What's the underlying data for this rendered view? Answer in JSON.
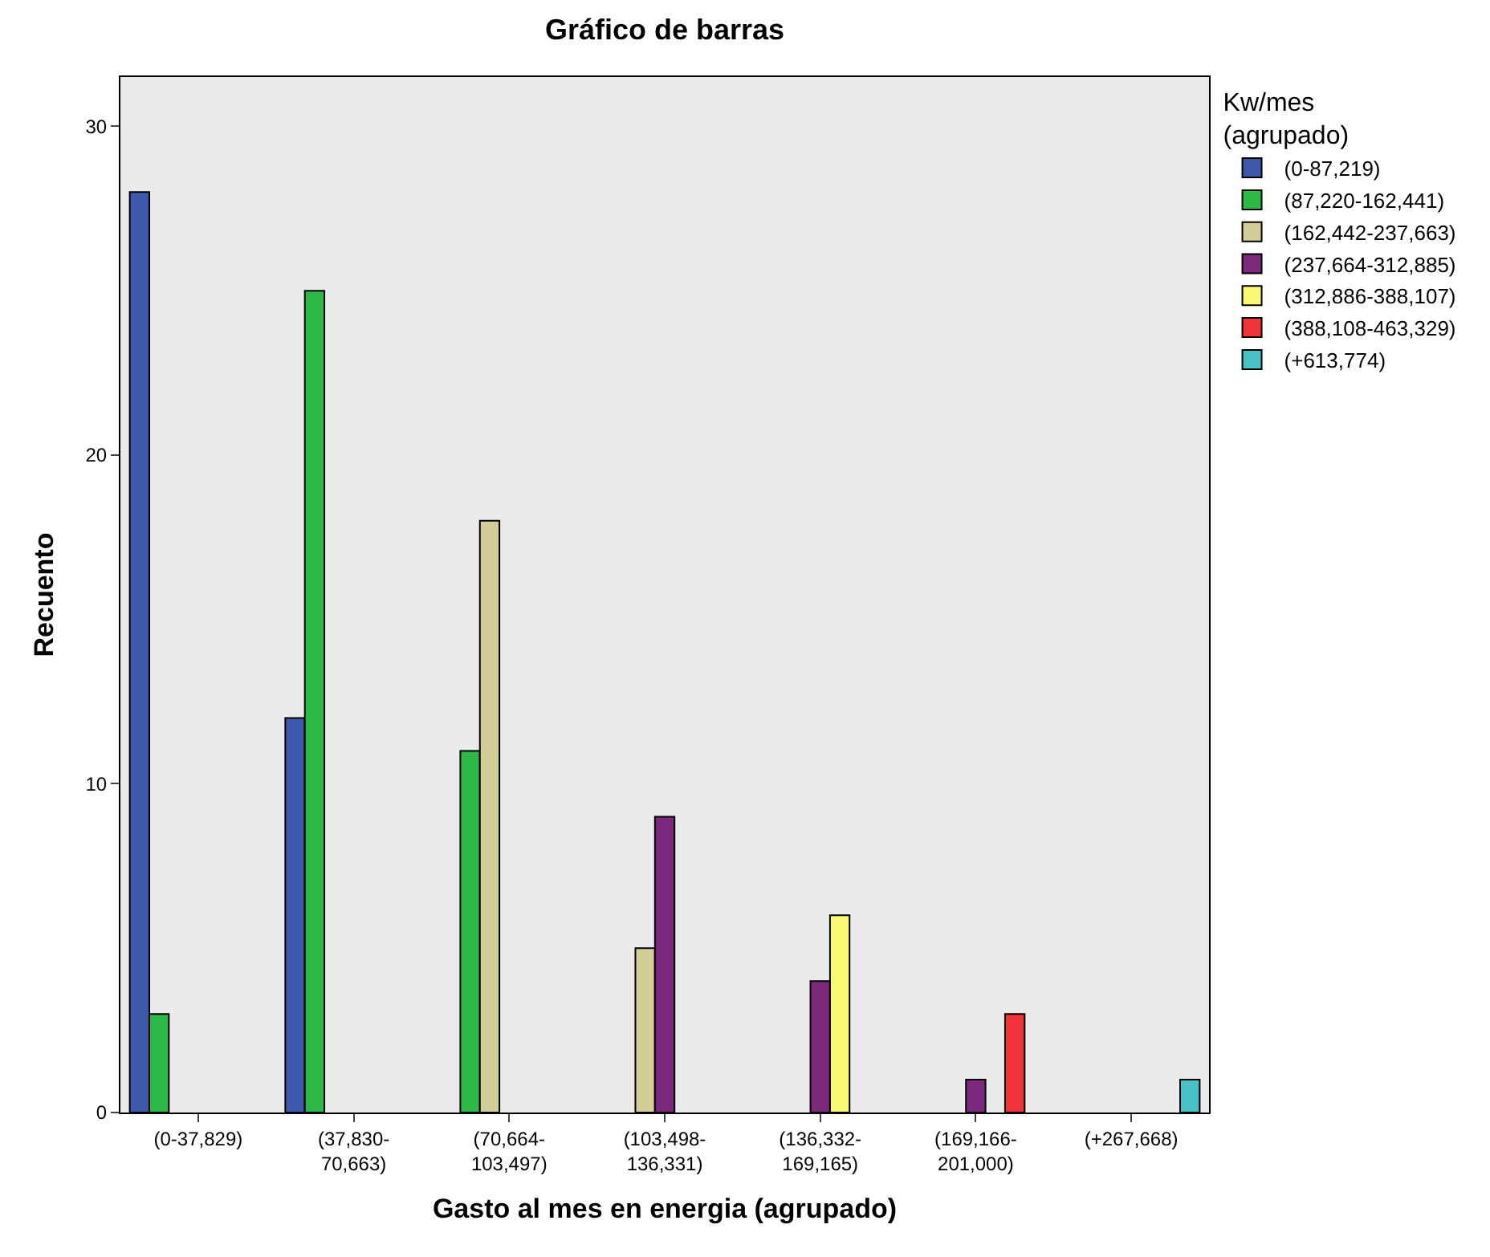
{
  "chart_data": {
    "type": "bar",
    "title": "Gráfico de barras",
    "xlabel": "Gasto al mes en energia (agrupado)",
    "ylabel": "Recuento",
    "legend_title": "Kw/mes\n(agrupado)",
    "categories": [
      "(0-37,829)",
      "(37,830-\n70,663)",
      "(70,664-\n103,497)",
      "(103,498-\n136,331)",
      "(136,332-\n169,165)",
      "(169,166-\n201,000)",
      "(+267,668)"
    ],
    "series": [
      {
        "name": "(0-87,219)",
        "color": "#3e58ac",
        "values": [
          28,
          12,
          null,
          null,
          null,
          null,
          null
        ]
      },
      {
        "name": "(87,220-162,441)",
        "color": "#2eb848",
        "values": [
          3,
          25,
          11,
          null,
          null,
          null,
          null
        ]
      },
      {
        "name": "(162,442-237,663)",
        "color": "#d3ce97",
        "values": [
          null,
          null,
          18,
          5,
          null,
          null,
          null
        ]
      },
      {
        "name": "(237,664-312,885)",
        "color": "#7c287d",
        "values": [
          null,
          null,
          null,
          9,
          4,
          1,
          null
        ]
      },
      {
        "name": "(312,886-388,107)",
        "color": "#fbf873",
        "values": [
          null,
          null,
          null,
          null,
          6,
          null,
          null
        ]
      },
      {
        "name": "(388,108-463,329)",
        "color": "#ef3338",
        "values": [
          null,
          null,
          null,
          null,
          null,
          3,
          null
        ]
      },
      {
        "name": "(+613,774)",
        "color": "#48c2c5",
        "values": [
          null,
          null,
          null,
          null,
          null,
          null,
          1
        ]
      }
    ],
    "ylim": [
      0,
      31.5
    ],
    "yticks": [
      0,
      10,
      20,
      30
    ],
    "grid": false,
    "legend": "top right"
  }
}
